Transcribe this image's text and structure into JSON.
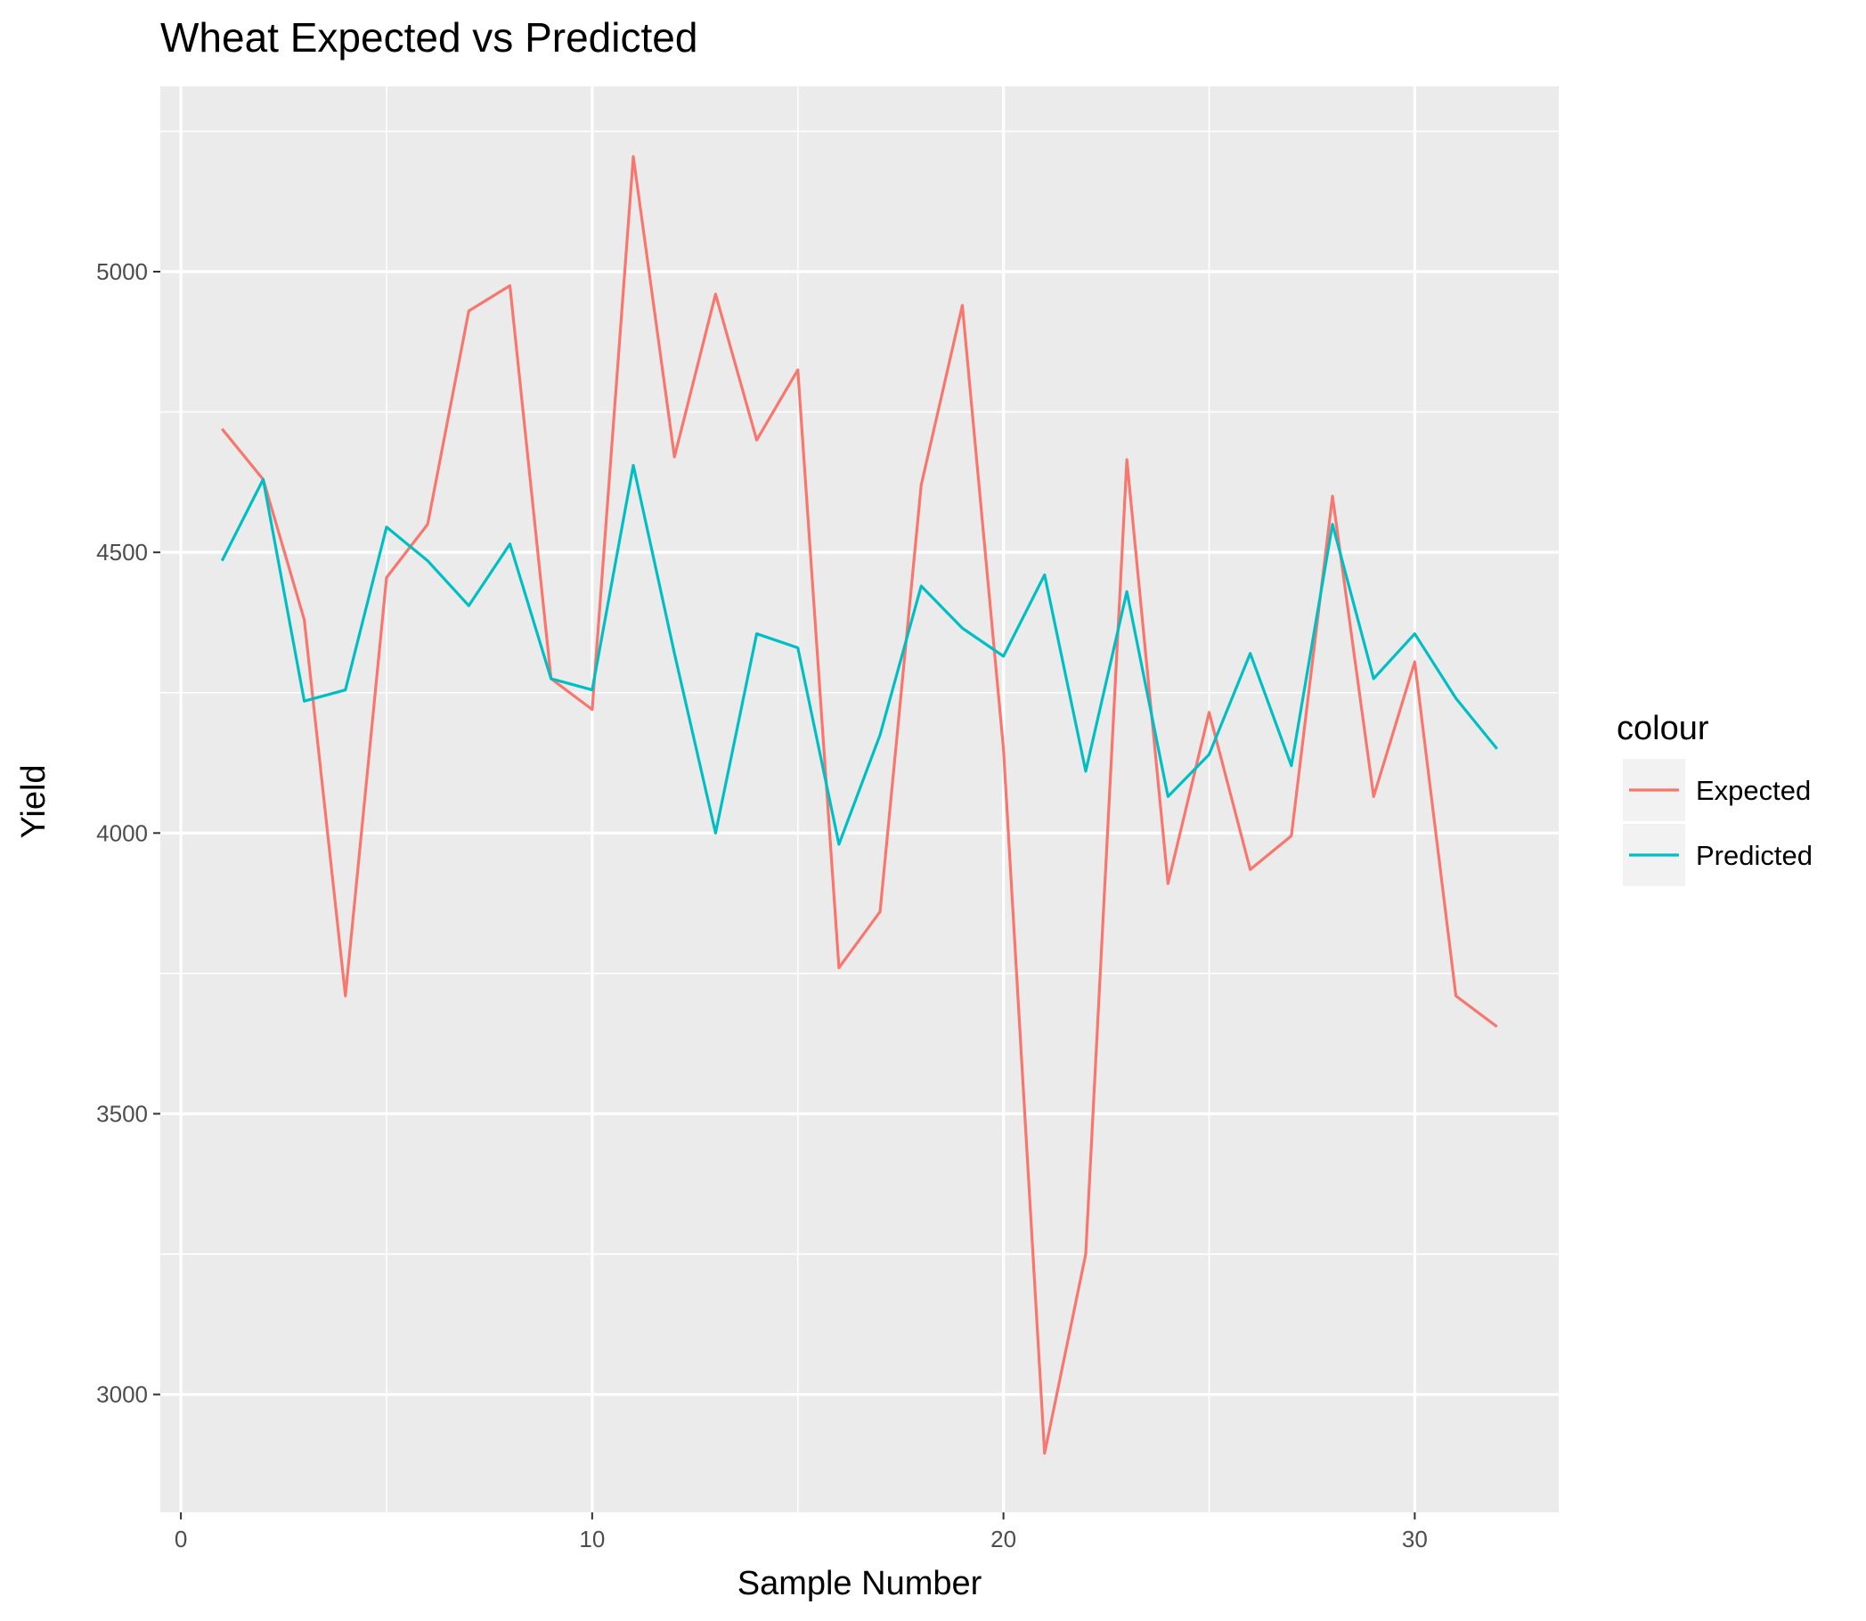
{
  "chart_data": {
    "type": "line",
    "title": "Wheat Expected vs Predicted",
    "xlabel": "Sample Number",
    "ylabel": "Yield",
    "xlim": [
      -0.5,
      33.5
    ],
    "ylim": [
      2790,
      5330
    ],
    "xticks": [
      0,
      10,
      20,
      30
    ],
    "yticks": [
      3000,
      3500,
      4000,
      4500,
      5000
    ],
    "grid": true,
    "legend": {
      "title": "colour",
      "position": "right"
    },
    "x": [
      1,
      2,
      3,
      4,
      5,
      6,
      7,
      8,
      9,
      10,
      11,
      12,
      13,
      14,
      15,
      16,
      17,
      18,
      19,
      20,
      21,
      22,
      23,
      24,
      25,
      26,
      27,
      28,
      29,
      30,
      31,
      32
    ],
    "series": [
      {
        "name": "Expected",
        "color": "#F8766D",
        "values": [
          4720,
          4630,
          4380,
          3710,
          4455,
          4550,
          4930,
          4975,
          4275,
          4220,
          5205,
          4670,
          4960,
          4700,
          4825,
          3760,
          3860,
          4620,
          4940,
          4150,
          2895,
          3250,
          4665,
          3910,
          4215,
          3935,
          3995,
          4600,
          4065,
          4305,
          3710,
          3655
        ]
      },
      {
        "name": "Predicted",
        "color": "#00BFC4",
        "values": [
          4485,
          4630,
          4235,
          4255,
          4545,
          4485,
          4405,
          4515,
          4275,
          4255,
          4655,
          4320,
          4000,
          4355,
          4330,
          3980,
          4175,
          4440,
          4365,
          4315,
          4460,
          4110,
          4430,
          4065,
          4140,
          4320,
          4120,
          4550,
          4275,
          4355,
          4240,
          4150
        ]
      }
    ]
  }
}
